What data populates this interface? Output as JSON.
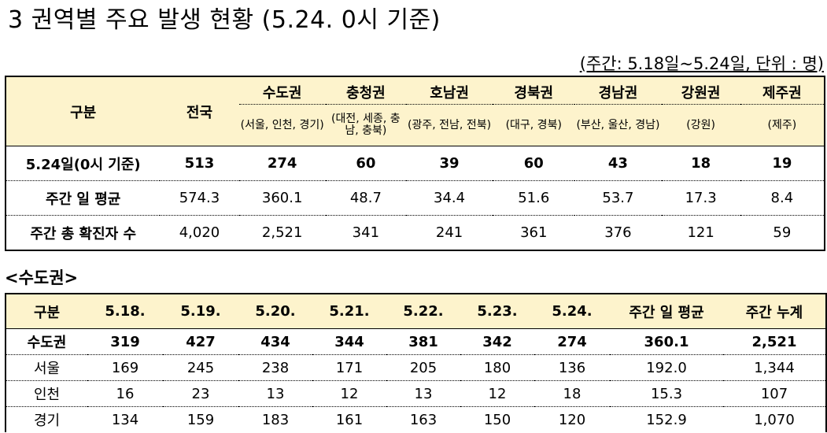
{
  "title": "3  권역별 주요 발생 현황 (5.24. 0시 기준)",
  "unit_note": "(주간: 5.18일~5.24일, 단위 : 명)",
  "summary_table": {
    "corner_label": "구분",
    "national_label": "전국",
    "regions": [
      {
        "name": "수도권",
        "sub": "(서울, 인천, 경기)"
      },
      {
        "name": "충청권",
        "sub": "(대전, 세종, 충남, 충북)"
      },
      {
        "name": "호남권",
        "sub": "(광주, 전남, 전북)"
      },
      {
        "name": "경북권",
        "sub": "(대구, 경북)"
      },
      {
        "name": "경남권",
        "sub": "(부산, 울산, 경남)"
      },
      {
        "name": "강원권",
        "sub": "(강원)"
      },
      {
        "name": "제주권",
        "sub": "(제주)"
      }
    ],
    "rows": [
      {
        "label": "5.24일(0시 기준)",
        "values": [
          "513",
          "274",
          "60",
          "39",
          "60",
          "43",
          "18",
          "19"
        ]
      },
      {
        "label": "주간 일 평균",
        "values": [
          "574.3",
          "360.1",
          "48.7",
          "34.4",
          "51.6",
          "53.7",
          "17.3",
          "8.4"
        ]
      },
      {
        "label": "주간 총 확진자 수",
        "values": [
          "4,020",
          "2,521",
          "341",
          "241",
          "361",
          "376",
          "121",
          "59"
        ]
      }
    ]
  },
  "metro_heading": "<수도권>",
  "metro_table": {
    "headers": [
      "구분",
      "5.18.",
      "5.19.",
      "5.20.",
      "5.21.",
      "5.22.",
      "5.23.",
      "5.24.",
      "주간 일 평균",
      "주간 누계"
    ],
    "rows": [
      {
        "label": "수도권",
        "values": [
          "319",
          "427",
          "434",
          "344",
          "381",
          "342",
          "274",
          "360.1",
          "2,521"
        ]
      },
      {
        "label": "서울",
        "values": [
          "169",
          "245",
          "238",
          "171",
          "205",
          "180",
          "136",
          "192.0",
          "1,344"
        ]
      },
      {
        "label": "인천",
        "values": [
          "16",
          "23",
          "13",
          "12",
          "13",
          "12",
          "18",
          "15.3",
          "107"
        ]
      },
      {
        "label": "경기",
        "values": [
          "134",
          "159",
          "183",
          "161",
          "163",
          "150",
          "120",
          "152.9",
          "1,070"
        ]
      }
    ]
  }
}
